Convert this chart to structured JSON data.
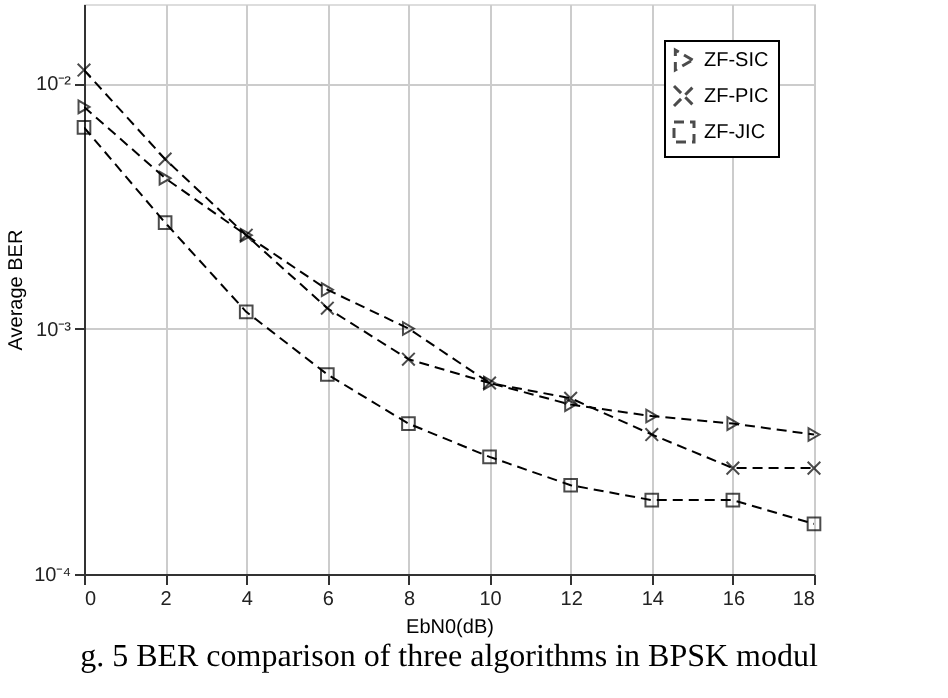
{
  "chart_data": {
    "type": "line",
    "xlabel": "EbN0(dB)",
    "ylabel": "Average BER",
    "x": [
      0,
      2,
      4,
      6,
      8,
      10,
      12,
      14,
      16,
      18
    ],
    "series": [
      {
        "name": "ZF-SIC",
        "color": "#000000",
        "marker": "triangle",
        "values": [
          0.008,
          0.0041,
          0.0024,
          0.00144,
          0.001,
          0.0006,
          0.00049,
          0.00044,
          0.00041,
          0.00037
        ]
      },
      {
        "name": "ZF-PIC",
        "color": "#000000",
        "marker": "cross",
        "values": [
          0.0113,
          0.0049,
          0.0024,
          0.00121,
          0.00075,
          0.0006,
          0.00052,
          0.00037,
          0.00027,
          0.00027
        ]
      },
      {
        "name": "ZF-JIC",
        "color": "#000000",
        "marker": "square",
        "values": [
          0.0066,
          0.0027,
          0.00117,
          0.00065,
          0.00041,
          0.0003,
          0.00023,
          0.0002,
          0.0002,
          0.00016
        ]
      }
    ],
    "line_style": "dashed",
    "log": "y",
    "grid": true,
    "legend": "top right",
    "xlim": [
      0,
      18
    ],
    "xticks": [
      0,
      2,
      4,
      6,
      8,
      10,
      12,
      14,
      16,
      18
    ],
    "ylim": [
      0.0001,
      0.021
    ],
    "yticks": [
      {
        "value": 0.0001,
        "label": "10⁻⁴"
      },
      {
        "value": 0.001,
        "label": "10⁻³"
      },
      {
        "value": 0.01,
        "label": "10⁻²"
      }
    ],
    "annotations": [
      "g. 5 BER comparison of three algorithms in BPSK modul"
    ]
  }
}
